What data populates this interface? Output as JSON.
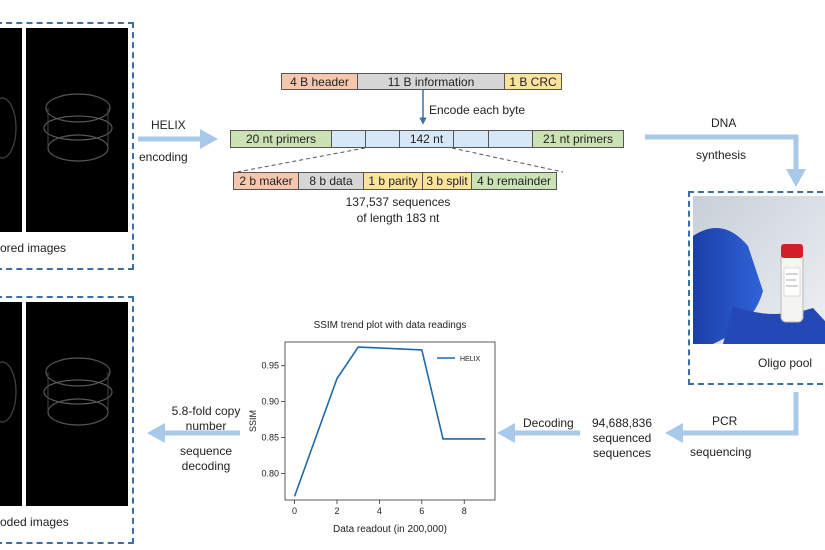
{
  "top_left": {
    "caption": "ored images"
  },
  "bottom_left": {
    "caption": "oded images"
  },
  "helix_arrow": {
    "line1": "HELIX",
    "line2": "encoding"
  },
  "encoding_block": {
    "header_segments": [
      {
        "label": "4 B header",
        "color": "orange"
      },
      {
        "label": "11 B information",
        "color": "gray"
      },
      {
        "label": "1 B CRC",
        "color": "yellow"
      }
    ],
    "encode_label": "Encode each byte",
    "strand": {
      "left_primer": "20 nt primers",
      "middle": "142 nt",
      "right_primer": "21 nt primers"
    },
    "byte_segments": [
      {
        "label": "2 b maker",
        "color": "orange"
      },
      {
        "label": "8 b data",
        "color": "gray"
      },
      {
        "label": "1 b parity",
        "color": "yellow"
      },
      {
        "label": "3 b split",
        "color": "yellow"
      },
      {
        "label": "4 b remainder",
        "color": "green"
      }
    ],
    "sequences_line1": "137,537 sequences",
    "sequences_line2": "of length 183 nt"
  },
  "dna_arrow": {
    "line1": "DNA",
    "line2": "synthesis"
  },
  "oligo": {
    "caption": "Oligo pool"
  },
  "pcr": {
    "line1": "PCR",
    "line2": "sequencing"
  },
  "sequenced": {
    "line1": "94,688,836",
    "line2": "sequenced",
    "line3": "sequences"
  },
  "decoding_label": "Decoding",
  "copy_number": {
    "line1": "5.8-fold copy",
    "line2": "number",
    "line3": "sequence",
    "line4": "decoding"
  },
  "chart_data": {
    "type": "line",
    "title": "SSIM trend plot with data readings",
    "xlabel": "Data readout (in 200,000)",
    "ylabel": "SSIM",
    "xlim": [
      -0.45,
      9.45
    ],
    "ylim": [
      0.763,
      0.983
    ],
    "xticks": [
      0,
      2,
      4,
      6,
      8
    ],
    "yticks": [
      0.8,
      0.85,
      0.9,
      0.95
    ],
    "legend_position": "top-right",
    "grid": false,
    "series": [
      {
        "name": "HELIX",
        "color": "#1f6aa8",
        "x": [
          0,
          2,
          3,
          6,
          7,
          9
        ],
        "y": [
          0.768,
          0.932,
          0.976,
          0.972,
          0.848,
          0.848
        ]
      }
    ]
  }
}
